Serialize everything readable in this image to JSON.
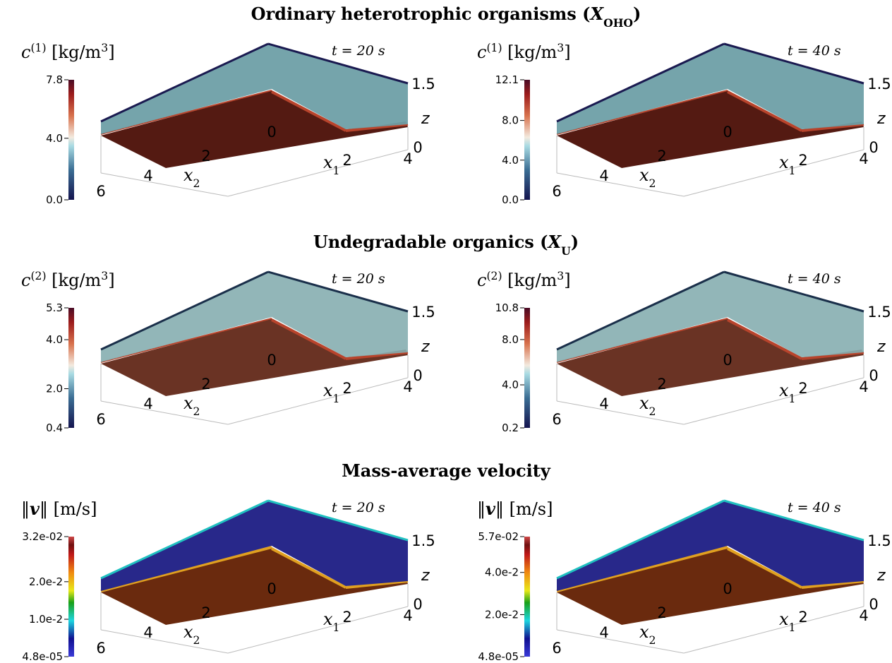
{
  "sections": [
    {
      "title": {
        "pre": "Ordinary heterotrophic organisms (",
        "sym": "X",
        "sub": "OHO",
        "post": ")"
      },
      "panels": [
        {
          "quantity": {
            "sym": "c",
            "sup": "(1)",
            "unit": " [kg/m",
            "unit_sup": "3",
            "unit_post": "]"
          },
          "time": "t = 20 s",
          "colorbar_ticks": [
            "7.8",
            "4.0",
            "0.0"
          ]
        },
        {
          "quantity": {
            "sym": "c",
            "sup": "(1)",
            "unit": " [kg/m",
            "unit_sup": "3",
            "unit_post": "]"
          },
          "time": "t = 40 s",
          "colorbar_ticks": [
            "12.1",
            "8.0",
            "4.0",
            "0.0"
          ]
        }
      ]
    },
    {
      "title": {
        "pre": "Undegradable organics (",
        "sym": "X",
        "sub": "U",
        "post": ")"
      },
      "panels": [
        {
          "quantity": {
            "sym": "c",
            "sup": "(2)",
            "unit": " [kg/m",
            "unit_sup": "3",
            "unit_post": "]"
          },
          "time": "t = 20 s",
          "colorbar_ticks": [
            "5.3",
            "4.0",
            "2.0",
            "0.4"
          ]
        },
        {
          "quantity": {
            "sym": "c",
            "sup": "(2)",
            "unit": " [kg/m",
            "unit_sup": "3",
            "unit_post": "]"
          },
          "time": "t = 40 s",
          "colorbar_ticks": [
            "10.8",
            "8.0",
            "4.0",
            "0.2"
          ]
        }
      ]
    },
    {
      "title": {
        "pre": "Mass-average velocity"
      },
      "panels": [
        {
          "quantity": {
            "pre": "‖",
            "bold": "v",
            "post": "‖",
            "unit": " [m/s]"
          },
          "time": "t = 20 s",
          "colorbar_ticks": [
            "3.2e-02",
            "2.0e-2",
            "1.0e-2",
            "4.8e-05"
          ]
        },
        {
          "quantity": {
            "pre": "‖",
            "bold": "v",
            "post": "‖",
            "unit": " [m/s]"
          },
          "time": "t = 40 s",
          "colorbar_ticks": [
            "5.7e-02",
            "4.0e-2",
            "2.0e-2",
            "4.8e-05"
          ]
        }
      ]
    }
  ],
  "axes": {
    "x1_label": {
      "sym": "x",
      "sub": "1"
    },
    "x2_label": {
      "sym": "x",
      "sub": "2"
    },
    "z_label": "z",
    "x1_ticks": [
      "0",
      "2",
      "4"
    ],
    "x2_ticks": [
      "2",
      "4",
      "6"
    ],
    "z_ticks": [
      "0",
      "1.5"
    ]
  }
}
